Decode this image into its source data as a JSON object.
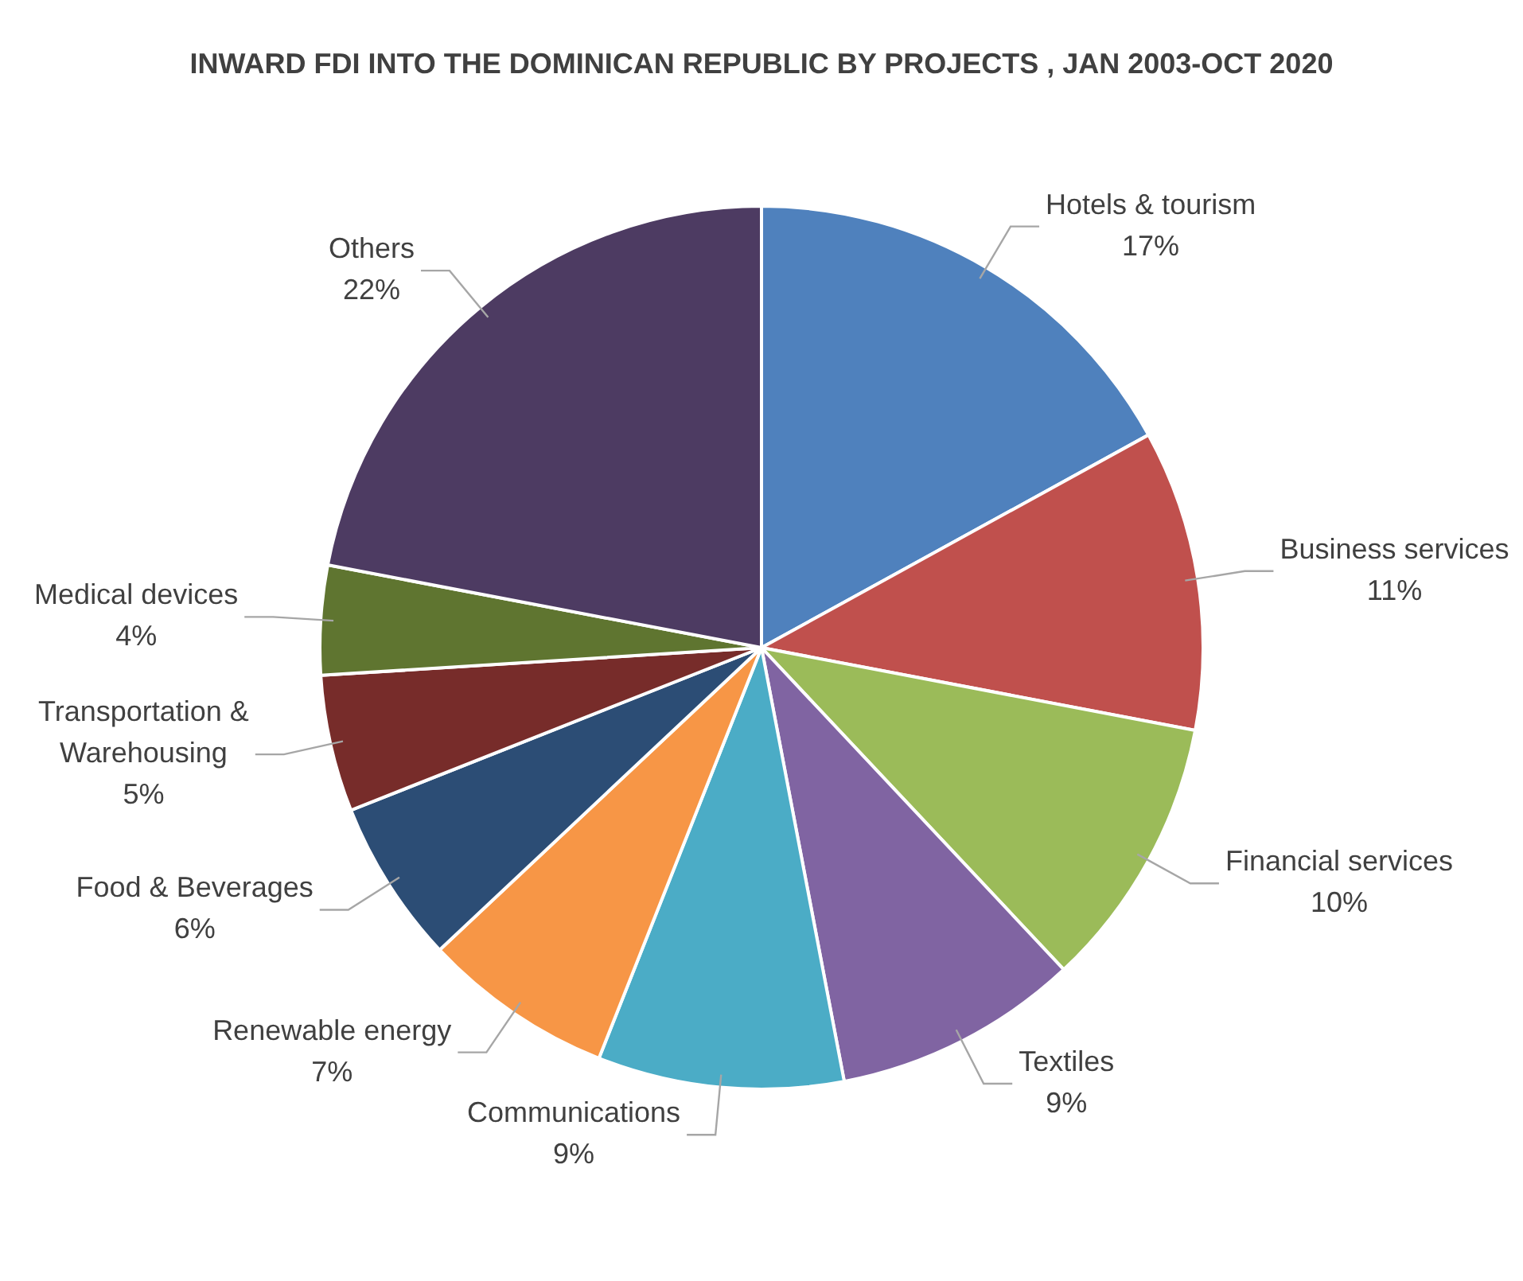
{
  "chart_data": {
    "type": "pie",
    "title": "INWARD FDI INTO THE DOMINICAN REPUBLIC BY PROJECTS , JAN 2003-OCT 2020",
    "categories": [
      "Hotels & tourism",
      "Business services",
      "Financial services",
      "Textiles",
      "Communications",
      "Renewable energy",
      "Food & Beverages",
      "Transportation & Warehousing",
      "Medical devices",
      "Others"
    ],
    "values": [
      17,
      11,
      10,
      9,
      9,
      7,
      6,
      5,
      4,
      22
    ],
    "value_labels": [
      "17%",
      "11%",
      "10%",
      "9%",
      "9%",
      "7%",
      "6%",
      "5%",
      "4%",
      "22%"
    ],
    "colors": [
      "#4f81bd",
      "#c0504d",
      "#9bbb59",
      "#8064a2",
      "#4bacc6",
      "#f79646",
      "#2c4d75",
      "#772c2a",
      "#5f7530",
      "#4d3b62"
    ],
    "legend": false
  }
}
